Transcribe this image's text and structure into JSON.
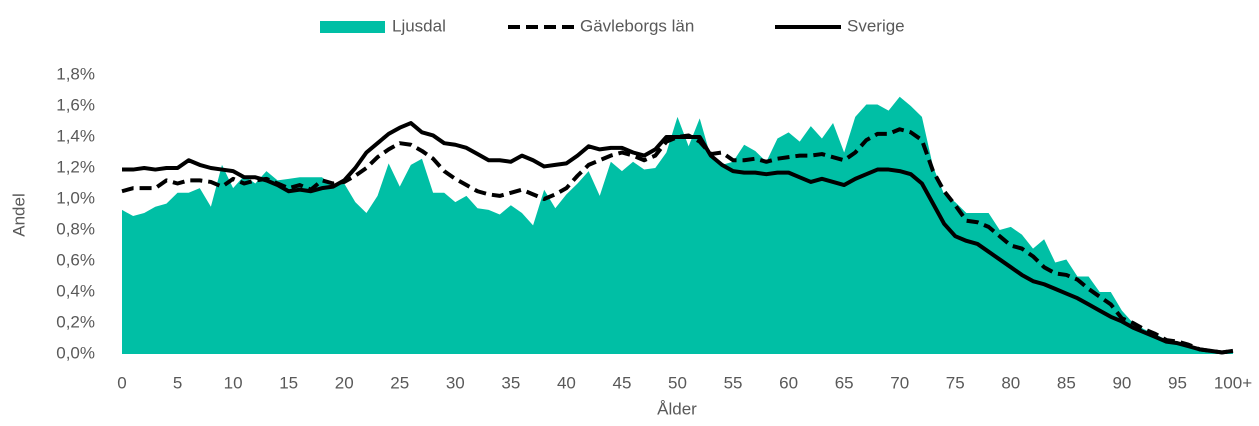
{
  "chart_data": {
    "type": "area",
    "x_label": "Ålder",
    "y_label": "Andel",
    "categories": [
      "0",
      null,
      null,
      null,
      null,
      "5",
      null,
      null,
      null,
      null,
      "10",
      null,
      null,
      null,
      null,
      "15",
      null,
      null,
      null,
      null,
      "20",
      null,
      null,
      null,
      null,
      "25",
      null,
      null,
      null,
      null,
      "30",
      null,
      null,
      null,
      null,
      "35",
      null,
      null,
      null,
      null,
      "40",
      null,
      null,
      null,
      null,
      "45",
      null,
      null,
      null,
      null,
      "50",
      null,
      null,
      null,
      null,
      "55",
      null,
      null,
      null,
      null,
      "60",
      null,
      null,
      null,
      null,
      "65",
      null,
      null,
      null,
      null,
      "70",
      null,
      null,
      null,
      null,
      "75",
      null,
      null,
      null,
      null,
      "80",
      null,
      null,
      null,
      null,
      "85",
      null,
      null,
      null,
      null,
      "90",
      null,
      null,
      null,
      null,
      "95",
      null,
      null,
      null,
      null,
      "100+"
    ],
    "series": [
      {
        "name": "Ljusdal",
        "type": "area",
        "color": "#00bfa5",
        "values": [
          0.93,
          0.89,
          0.91,
          0.95,
          0.97,
          1.04,
          1.04,
          1.07,
          0.95,
          1.22,
          1.07,
          1.15,
          1.1,
          1.18,
          1.12,
          1.13,
          1.14,
          1.14,
          1.14,
          1.08,
          1.1,
          0.98,
          0.91,
          1.02,
          1.23,
          1.08,
          1.22,
          1.26,
          1.04,
          1.04,
          0.98,
          1.02,
          0.94,
          0.93,
          0.9,
          0.96,
          0.91,
          0.83,
          1.06,
          0.94,
          1.03,
          1.1,
          1.18,
          1.02,
          1.24,
          1.18,
          1.24,
          1.19,
          1.2,
          1.3,
          1.53,
          1.34,
          1.52,
          1.27,
          1.22,
          1.24,
          1.35,
          1.31,
          1.24,
          1.39,
          1.43,
          1.37,
          1.47,
          1.39,
          1.49,
          1.3,
          1.53,
          1.61,
          1.61,
          1.57,
          1.66,
          1.6,
          1.53,
          1.21,
          1.03,
          0.98,
          0.91,
          0.91,
          0.91,
          0.8,
          0.82,
          0.77,
          0.68,
          0.74,
          0.59,
          0.61,
          0.5,
          0.5,
          0.4,
          0.4,
          0.28,
          0.2,
          0.16,
          0.13,
          0.09,
          0.08,
          0.06,
          0.03,
          0.02,
          0.01,
          0.02
        ]
      },
      {
        "name": "Gävleborgs län",
        "type": "line",
        "line_style": "dashed",
        "color": "#000000",
        "values": [
          1.05,
          1.07,
          1.07,
          1.07,
          1.12,
          1.1,
          1.12,
          1.12,
          1.11,
          1.08,
          1.13,
          1.1,
          1.12,
          1.13,
          1.1,
          1.07,
          1.09,
          1.06,
          1.12,
          1.1,
          1.11,
          1.15,
          1.2,
          1.27,
          1.32,
          1.36,
          1.35,
          1.31,
          1.26,
          1.18,
          1.13,
          1.09,
          1.05,
          1.03,
          1.02,
          1.04,
          1.06,
          1.03,
          1.0,
          1.03,
          1.07,
          1.15,
          1.22,
          1.25,
          1.28,
          1.3,
          1.28,
          1.25,
          1.28,
          1.37,
          1.4,
          1.41,
          1.37,
          1.29,
          1.3,
          1.25,
          1.25,
          1.26,
          1.24,
          1.26,
          1.27,
          1.28,
          1.28,
          1.29,
          1.27,
          1.25,
          1.3,
          1.38,
          1.42,
          1.42,
          1.45,
          1.43,
          1.38,
          1.18,
          1.05,
          0.96,
          0.86,
          0.85,
          0.82,
          0.76,
          0.7,
          0.68,
          0.63,
          0.56,
          0.52,
          0.51,
          0.48,
          0.42,
          0.37,
          0.32,
          0.23,
          0.2,
          0.16,
          0.13,
          0.09,
          0.08,
          0.06,
          0.03,
          0.02,
          0.01,
          0.02
        ]
      },
      {
        "name": "Sverige",
        "type": "line",
        "line_style": "solid",
        "color": "#000000",
        "values": [
          1.19,
          1.19,
          1.2,
          1.19,
          1.2,
          1.2,
          1.25,
          1.22,
          1.2,
          1.19,
          1.18,
          1.14,
          1.14,
          1.12,
          1.09,
          1.05,
          1.06,
          1.05,
          1.07,
          1.08,
          1.12,
          1.2,
          1.3,
          1.36,
          1.42,
          1.46,
          1.49,
          1.43,
          1.41,
          1.36,
          1.35,
          1.33,
          1.29,
          1.25,
          1.25,
          1.24,
          1.28,
          1.25,
          1.21,
          1.22,
          1.23,
          1.28,
          1.34,
          1.32,
          1.33,
          1.33,
          1.3,
          1.28,
          1.32,
          1.4,
          1.4,
          1.4,
          1.4,
          1.28,
          1.22,
          1.18,
          1.17,
          1.17,
          1.16,
          1.17,
          1.17,
          1.14,
          1.11,
          1.13,
          1.11,
          1.09,
          1.13,
          1.16,
          1.19,
          1.19,
          1.18,
          1.16,
          1.1,
          0.97,
          0.84,
          0.76,
          0.73,
          0.71,
          0.66,
          0.61,
          0.56,
          0.51,
          0.47,
          0.45,
          0.42,
          0.39,
          0.36,
          0.32,
          0.28,
          0.24,
          0.21,
          0.17,
          0.14,
          0.11,
          0.08,
          0.07,
          0.05,
          0.03,
          0.02,
          0.01,
          0.02
        ]
      }
    ],
    "ylim": [
      0,
      1.8
    ],
    "yticks": [
      {
        "value": 0,
        "label": "0,0%"
      },
      {
        "value": 0.2,
        "label": "0,2%"
      },
      {
        "value": 0.4,
        "label": "0,4%"
      },
      {
        "value": 0.6,
        "label": "0,6%"
      },
      {
        "value": 0.8,
        "label": "0,8%"
      },
      {
        "value": 1.0,
        "label": "1,0%"
      },
      {
        "value": 1.2,
        "label": "1,2%"
      },
      {
        "value": 1.4,
        "label": "1,4%"
      },
      {
        "value": 1.6,
        "label": "1,6%"
      },
      {
        "value": 1.8,
        "label": "1,8%"
      }
    ],
    "grid": false,
    "legend": "top"
  }
}
